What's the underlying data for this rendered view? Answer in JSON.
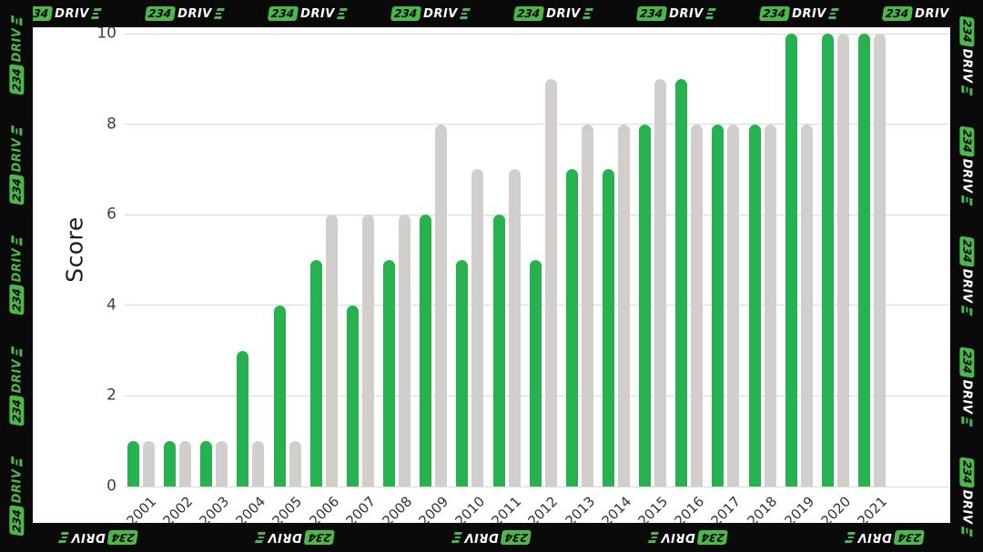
{
  "brand": {
    "badge_text": "234",
    "name_text": "DRIV",
    "accent_green": "#4cb849",
    "name_color_default": "#ffffff",
    "name_color_side": "#4cb849"
  },
  "chart_data": {
    "type": "bar",
    "title": "",
    "ylabel": "Score",
    "xlabel": "",
    "categories": [
      "2001",
      "2002",
      "2003",
      "2004",
      "2005",
      "2006",
      "2007",
      "2008",
      "2009",
      "2010",
      "2011",
      "2012",
      "2013",
      "2014",
      "2015",
      "2016",
      "2017",
      "2018",
      "2019",
      "2020",
      "2021"
    ],
    "series": [
      {
        "name": "green",
        "color": "#25b24f",
        "values": [
          1,
          1,
          1,
          3,
          4,
          5,
          4,
          5,
          6,
          5,
          6,
          5,
          7,
          7,
          8,
          9,
          8,
          8,
          10,
          10,
          10
        ]
      },
      {
        "name": "grey",
        "color": "#d2cecb",
        "values": [
          1,
          1,
          1,
          1,
          1,
          6,
          6,
          6,
          8,
          7,
          7,
          9,
          8,
          8,
          9,
          8,
          8,
          8,
          8,
          10,
          10
        ]
      }
    ],
    "yticks": [
      0,
      2,
      4,
      6,
      8,
      10
    ],
    "ylim": [
      0,
      10
    ],
    "grid": true,
    "legend_position": "none",
    "plot_background": "#ffffff",
    "gridline_color": "#dadada",
    "tick_label_color": "#404040"
  }
}
